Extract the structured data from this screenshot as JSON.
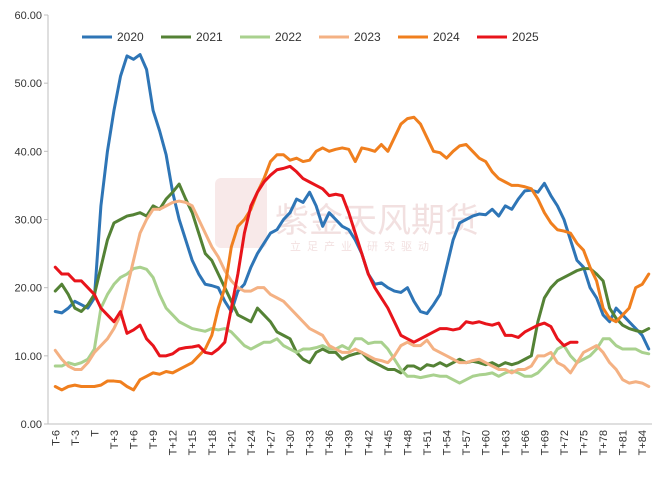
{
  "chart_data": {
    "type": "line",
    "categories": [
      "T-6",
      null,
      null,
      "T-3",
      null,
      null,
      "T",
      null,
      null,
      "T+3",
      null,
      null,
      "T+6",
      null,
      null,
      "T+9",
      null,
      null,
      "T+12",
      null,
      null,
      "T+15",
      null,
      null,
      "T+18",
      null,
      null,
      "T+21",
      null,
      null,
      "T+24",
      null,
      null,
      "T+27",
      null,
      null,
      "T+30",
      null,
      null,
      "T+33",
      null,
      null,
      "T+36",
      null,
      null,
      "T+39",
      null,
      null,
      "T+42",
      null,
      null,
      "T+45",
      null,
      null,
      "T+48",
      null,
      null,
      "T+51",
      null,
      null,
      "T+54",
      null,
      null,
      "T+57",
      null,
      null,
      "T+60",
      null,
      null,
      "T+63",
      null,
      null,
      "T+66",
      null,
      null,
      "T+69",
      null,
      null,
      "T+72",
      null,
      null,
      "T+75",
      null,
      null,
      "T+78",
      null,
      null,
      "T+81",
      null,
      null,
      "T+84",
      null
    ],
    "ylim": [
      0,
      60
    ],
    "yticks": [
      {
        "value": 0,
        "label": "0.00"
      },
      {
        "value": 10,
        "label": "10.00"
      },
      {
        "value": 20,
        "label": "20.00"
      },
      {
        "value": 30,
        "label": "30.00"
      },
      {
        "value": 40,
        "label": "40.00"
      },
      {
        "value": 50,
        "label": "50.00"
      },
      {
        "value": 60,
        "label": "60.00"
      }
    ],
    "grid": false,
    "legend": "top",
    "watermark": [
      "紫金天风期货",
      "立足产业 研究驱动"
    ],
    "series": [
      {
        "name": "2020",
        "color": "#2e75b6",
        "values": [
          16.5,
          16.3,
          17,
          18,
          17.5,
          17,
          18.5,
          32,
          40,
          46,
          51,
          54,
          53.5,
          54.2,
          52,
          46,
          43,
          39.5,
          34,
          30,
          27,
          24,
          22,
          20.5,
          20.3,
          20,
          18,
          16.5,
          19.5,
          20.5,
          23,
          25,
          26.5,
          28,
          28.5,
          30,
          31,
          33,
          32.5,
          34,
          32,
          29,
          31,
          30,
          29,
          28.5,
          27,
          25,
          22,
          20.5,
          20.7,
          20,
          19.5,
          19.3,
          20,
          18,
          16.5,
          16.2,
          17.5,
          19,
          23,
          27,
          29.5,
          30,
          30.5,
          30.8,
          30.7,
          31.5,
          30.5,
          32,
          31.5,
          33,
          34.2,
          34.3,
          34,
          35.3,
          33.5,
          32,
          30,
          27,
          24,
          23,
          20,
          18.5,
          16,
          15,
          17,
          16,
          15,
          14,
          13,
          11
        ]
      },
      {
        "name": "2021",
        "color": "#548235",
        "values": [
          19.5,
          20.5,
          19,
          17,
          16.5,
          17.5,
          19,
          23,
          27,
          29.5,
          30,
          30.5,
          30.7,
          31,
          30.5,
          32,
          31.5,
          33,
          34,
          35.2,
          33,
          31,
          28,
          25,
          24,
          22,
          20,
          18,
          16,
          15.5,
          15,
          17,
          16,
          15,
          13.5,
          13,
          12.5,
          10.5,
          9.5,
          9,
          10.5,
          11,
          10.5,
          10.5,
          9.5,
          10,
          10.3,
          10.5,
          9.5,
          9,
          8.5,
          8,
          8,
          7.5,
          8.5,
          8.5,
          8,
          8.7,
          8.5,
          9,
          8.5,
          9,
          9.5,
          9,
          9.2,
          9,
          8.7,
          9,
          8.5,
          9,
          8.7,
          9,
          9.5,
          10,
          15,
          18.5,
          20,
          21,
          21.5,
          22,
          22.5,
          22.8,
          22.8,
          22,
          21,
          17,
          15.5,
          14.5,
          14,
          13.7,
          13.5,
          14
        ]
      },
      {
        "name": "2022",
        "color": "#a9d18e",
        "values": [
          8.5,
          8.5,
          9,
          8.7,
          9,
          9.5,
          11,
          17,
          19,
          20.5,
          21.5,
          22,
          22.8,
          23,
          22.7,
          21.5,
          19,
          17,
          16,
          15,
          14.5,
          14,
          13.8,
          13.6,
          14,
          13.8,
          14,
          13.5,
          12.5,
          11.5,
          11,
          11.5,
          12,
          12,
          12.5,
          11.5,
          11,
          10.5,
          11,
          11,
          11.2,
          11.5,
          11,
          11,
          11.5,
          11,
          12.5,
          12.5,
          11.8,
          12,
          12,
          11,
          9.5,
          8,
          7,
          7,
          6.8,
          7,
          7.2,
          7,
          7,
          6.5,
          6,
          6.5,
          7,
          7.2,
          7.3,
          7.5,
          7,
          7.5,
          7.8,
          7.5,
          7,
          7,
          7.5,
          8.5,
          9.5,
          11,
          11.5,
          10,
          9,
          9.5,
          10,
          11,
          12.5,
          12.5,
          11.5,
          11,
          11,
          11,
          10.5,
          10.3
        ]
      },
      {
        "name": "2023",
        "color": "#f4b183",
        "values": [
          10.8,
          9.5,
          8.5,
          8,
          8,
          9,
          10.5,
          11.5,
          12.5,
          14,
          16,
          20,
          24,
          28,
          30,
          31.5,
          31.5,
          32,
          32.5,
          32.7,
          32.5,
          32,
          30,
          28,
          26,
          24.5,
          22.5,
          21,
          20,
          19.5,
          19.5,
          20,
          20,
          19,
          18.5,
          18,
          17,
          16,
          15,
          14,
          13.5,
          13,
          11.5,
          11,
          10.5,
          10.5,
          11,
          10.5,
          10,
          9.5,
          9.3,
          9,
          10,
          11.5,
          12,
          11.5,
          11.5,
          12.3,
          11,
          10.5,
          10,
          9.5,
          9,
          9,
          9.3,
          9.5,
          9,
          8.5,
          8,
          8,
          7.5,
          8,
          8,
          8.5,
          10,
          10,
          10.5,
          9,
          8.5,
          7.5,
          9,
          10.5,
          11,
          11.5,
          10.5,
          9,
          8,
          6.5,
          6,
          6.2,
          6,
          5.5
        ]
      },
      {
        "name": "2024",
        "color": "#f07f1e",
        "values": [
          5.5,
          5,
          5.5,
          5.7,
          5.5,
          5.5,
          5.5,
          5.7,
          6.3,
          6.3,
          6.2,
          5.5,
          5,
          6.5,
          7,
          7.5,
          7.3,
          7.7,
          7.5,
          8,
          8.5,
          9,
          10,
          11,
          13,
          17,
          20,
          26,
          29,
          30,
          31.5,
          34,
          36,
          38.5,
          39.5,
          39.5,
          38.7,
          39,
          38.5,
          38.7,
          40,
          40.5,
          40,
          40.3,
          40.5,
          40.3,
          38.5,
          40.5,
          40.3,
          40,
          41,
          40,
          42,
          44,
          44.8,
          45,
          44,
          42,
          40,
          39.8,
          39,
          40,
          40.8,
          41,
          40,
          39,
          38.5,
          37,
          36,
          35.5,
          35,
          35,
          34.8,
          34.5,
          33,
          31,
          29.5,
          28.5,
          28.3,
          28,
          26.5,
          25.5,
          23,
          21,
          17,
          15.5,
          15,
          16,
          17,
          20,
          20.5,
          22
        ]
      },
      {
        "name": "2025",
        "color": "#e8141b",
        "values": [
          23,
          22,
          22,
          21,
          21,
          20,
          19,
          17,
          16,
          15,
          16.5,
          13.3,
          13.8,
          14.5,
          12.5,
          11.5,
          10,
          10,
          10.3,
          11,
          11.2,
          11.3,
          11.5,
          10.5,
          10.3,
          11,
          12,
          17,
          22,
          28,
          32,
          34,
          35.5,
          36.5,
          37.3,
          37.5,
          37.8,
          37,
          36,
          35.5,
          35,
          34.5,
          33.5,
          33.7,
          33.5,
          31,
          28,
          25,
          22,
          20,
          18.5,
          17,
          15,
          13,
          12.5,
          12,
          12.5,
          13,
          13.5,
          14,
          14,
          13.8,
          14,
          15,
          14.8,
          15,
          14.7,
          14.5,
          14.8,
          13,
          13,
          12.7,
          13.5,
          14,
          14.5,
          14.8,
          14.3,
          12.5,
          11.5,
          12,
          12,
          null,
          null,
          null,
          null,
          null,
          null,
          null,
          null,
          null,
          null,
          null
        ]
      }
    ]
  }
}
